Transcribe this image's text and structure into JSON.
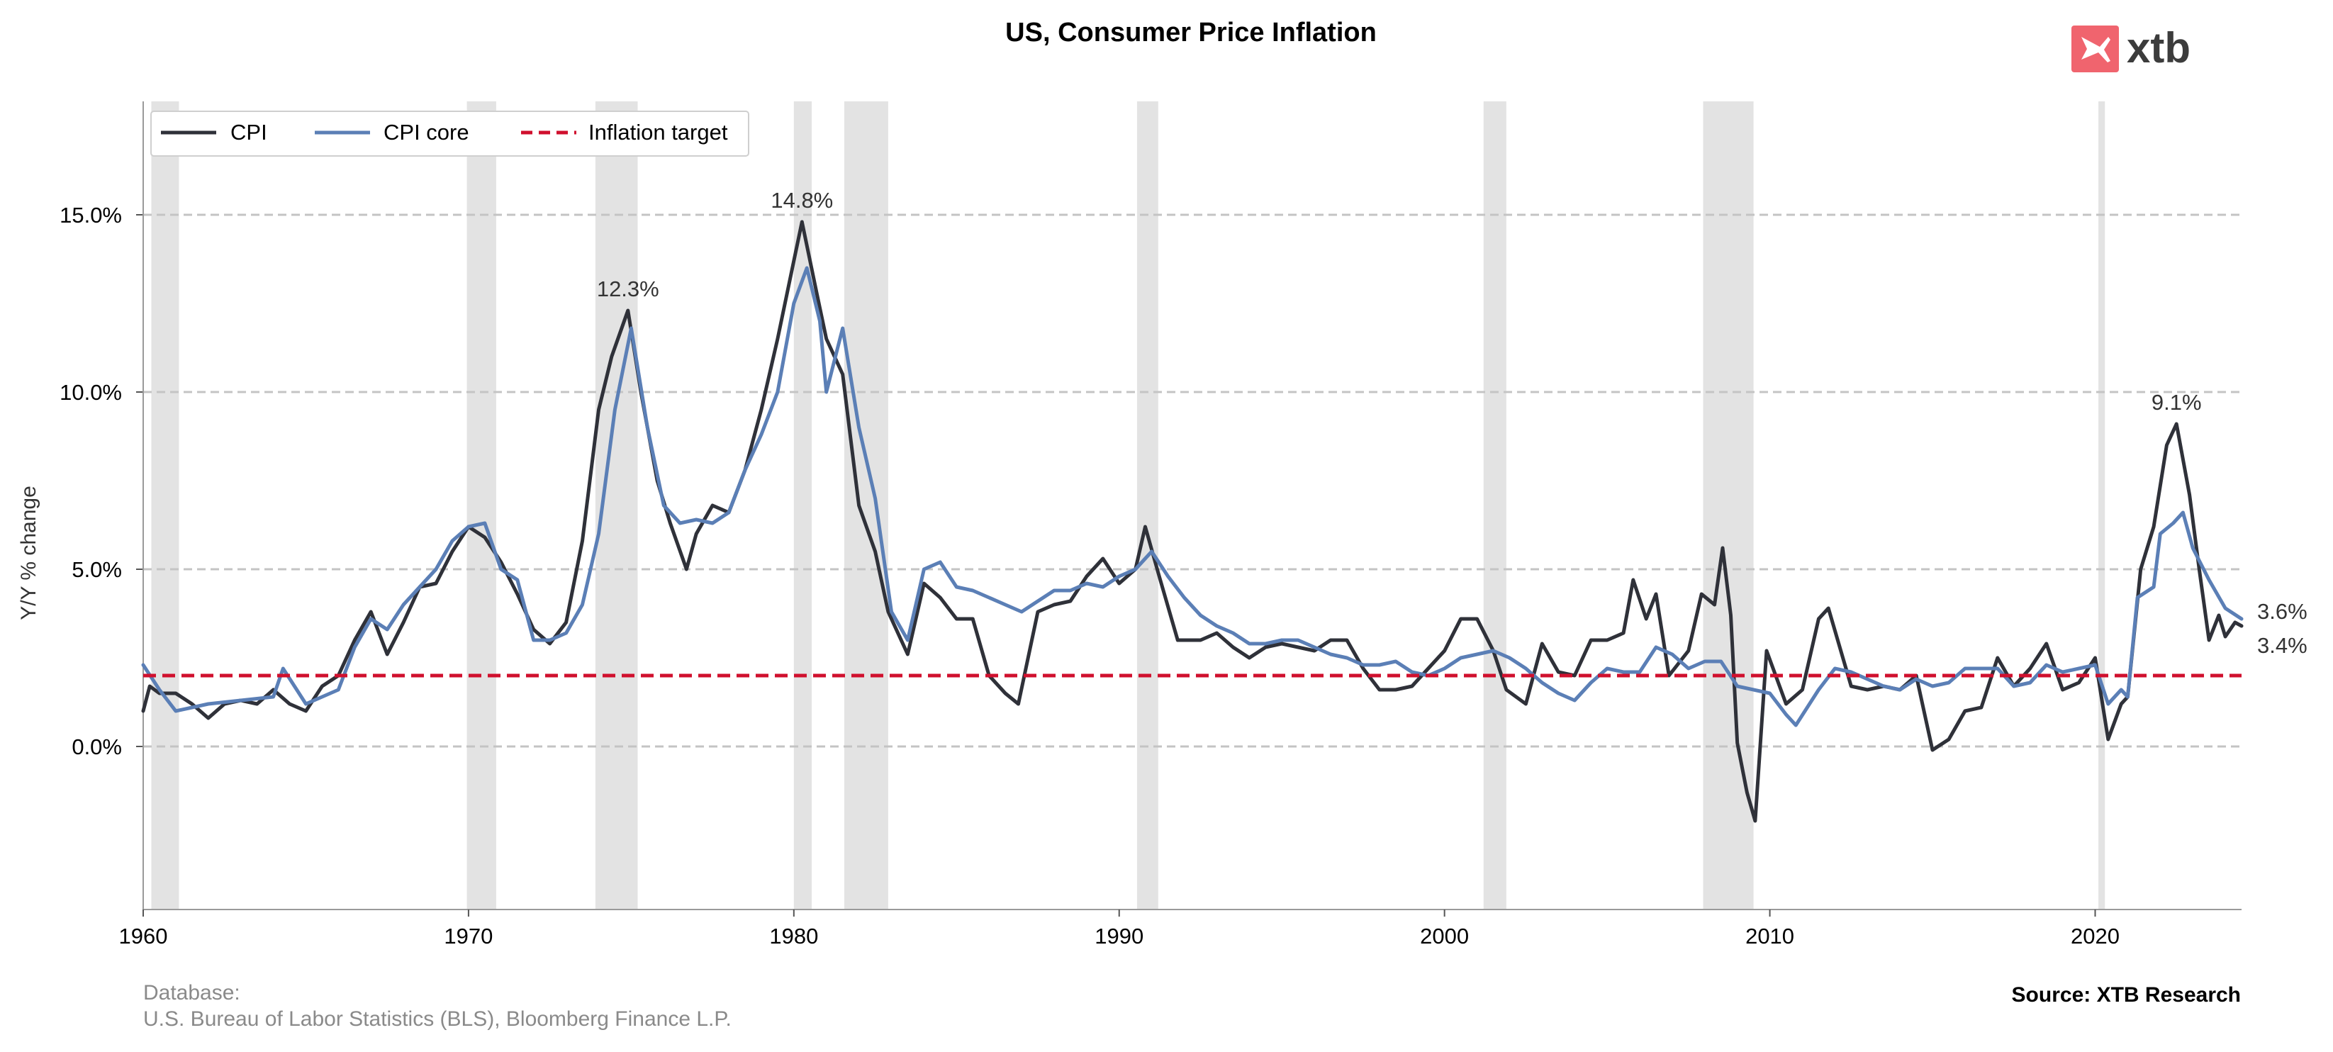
{
  "chart_data": {
    "type": "line",
    "title": "US, Consumer Price Inflation",
    "xlabel": "",
    "ylabel": "Y/Y % change",
    "xlim": [
      1960,
      2024.5
    ],
    "ylim": [
      -4.6,
      18.2
    ],
    "x_ticks": [
      1960,
      1970,
      1980,
      1990,
      2000,
      2010,
      2020
    ],
    "y_ticks": [
      0,
      5,
      10,
      15
    ],
    "y_tick_labels": [
      "0.0%",
      "5.0%",
      "10.0%",
      "15.0%"
    ],
    "grid": "horizontal dashed",
    "legend_position": "top-left",
    "series": [
      {
        "name": "CPI",
        "color": "#2f3139",
        "points": [
          [
            1960.0,
            1.0
          ],
          [
            1960.2,
            1.7
          ],
          [
            1960.5,
            1.5
          ],
          [
            1961.0,
            1.5
          ],
          [
            1961.5,
            1.2
          ],
          [
            1962.0,
            0.8
          ],
          [
            1962.5,
            1.2
          ],
          [
            1963.0,
            1.3
          ],
          [
            1963.5,
            1.2
          ],
          [
            1964.0,
            1.6
          ],
          [
            1964.5,
            1.2
          ],
          [
            1965.0,
            1.0
          ],
          [
            1965.5,
            1.7
          ],
          [
            1966.0,
            2.0
          ],
          [
            1966.5,
            3.0
          ],
          [
            1967.0,
            3.8
          ],
          [
            1967.5,
            2.6
          ],
          [
            1968.0,
            3.5
          ],
          [
            1968.5,
            4.5
          ],
          [
            1969.0,
            4.6
          ],
          [
            1969.5,
            5.5
          ],
          [
            1970.0,
            6.2
          ],
          [
            1970.5,
            5.9
          ],
          [
            1971.0,
            5.2
          ],
          [
            1971.5,
            4.3
          ],
          [
            1972.0,
            3.3
          ],
          [
            1972.5,
            2.9
          ],
          [
            1973.0,
            3.5
          ],
          [
            1973.5,
            5.8
          ],
          [
            1974.0,
            9.5
          ],
          [
            1974.4,
            11.0
          ],
          [
            1974.9,
            12.3
          ],
          [
            1975.3,
            10.0
          ],
          [
            1975.8,
            7.5
          ],
          [
            1976.2,
            6.3
          ],
          [
            1976.7,
            5.0
          ],
          [
            1977.0,
            6.0
          ],
          [
            1977.5,
            6.8
          ],
          [
            1978.0,
            6.6
          ],
          [
            1978.5,
            7.8
          ],
          [
            1979.0,
            9.5
          ],
          [
            1979.5,
            11.5
          ],
          [
            1980.0,
            13.7
          ],
          [
            1980.25,
            14.8
          ],
          [
            1980.7,
            12.8
          ],
          [
            1981.0,
            11.5
          ],
          [
            1981.5,
            10.5
          ],
          [
            1982.0,
            6.8
          ],
          [
            1982.5,
            5.5
          ],
          [
            1982.9,
            3.8
          ],
          [
            1983.5,
            2.6
          ],
          [
            1984.0,
            4.6
          ],
          [
            1984.5,
            4.2
          ],
          [
            1985.0,
            3.6
          ],
          [
            1985.5,
            3.6
          ],
          [
            1986.0,
            2.0
          ],
          [
            1986.5,
            1.5
          ],
          [
            1986.9,
            1.2
          ],
          [
            1987.5,
            3.8
          ],
          [
            1988.0,
            4.0
          ],
          [
            1988.5,
            4.1
          ],
          [
            1989.0,
            4.8
          ],
          [
            1989.5,
            5.3
          ],
          [
            1990.0,
            4.6
          ],
          [
            1990.5,
            5.0
          ],
          [
            1990.8,
            6.2
          ],
          [
            1991.2,
            4.9
          ],
          [
            1991.8,
            3.0
          ],
          [
            1992.5,
            3.0
          ],
          [
            1993.0,
            3.2
          ],
          [
            1993.5,
            2.8
          ],
          [
            1994.0,
            2.5
          ],
          [
            1994.5,
            2.8
          ],
          [
            1995.0,
            2.9
          ],
          [
            1995.5,
            2.8
          ],
          [
            1996.0,
            2.7
          ],
          [
            1996.5,
            3.0
          ],
          [
            1997.0,
            3.0
          ],
          [
            1997.5,
            2.2
          ],
          [
            1998.0,
            1.6
          ],
          [
            1998.5,
            1.6
          ],
          [
            1999.0,
            1.7
          ],
          [
            1999.5,
            2.2
          ],
          [
            2000.0,
            2.7
          ],
          [
            2000.5,
            3.6
          ],
          [
            2001.0,
            3.6
          ],
          [
            2001.5,
            2.7
          ],
          [
            2001.9,
            1.6
          ],
          [
            2002.5,
            1.2
          ],
          [
            2003.0,
            2.9
          ],
          [
            2003.5,
            2.1
          ],
          [
            2004.0,
            2.0
          ],
          [
            2004.5,
            3.0
          ],
          [
            2005.0,
            3.0
          ],
          [
            2005.5,
            3.2
          ],
          [
            2005.8,
            4.7
          ],
          [
            2006.2,
            3.6
          ],
          [
            2006.5,
            4.3
          ],
          [
            2006.9,
            2.0
          ],
          [
            2007.5,
            2.7
          ],
          [
            2007.9,
            4.3
          ],
          [
            2008.3,
            4.0
          ],
          [
            2008.55,
            5.6
          ],
          [
            2008.8,
            3.7
          ],
          [
            2009.0,
            0.1
          ],
          [
            2009.3,
            -1.3
          ],
          [
            2009.55,
            -2.1
          ],
          [
            2009.9,
            2.7
          ],
          [
            2010.5,
            1.2
          ],
          [
            2011.0,
            1.6
          ],
          [
            2011.5,
            3.6
          ],
          [
            2011.8,
            3.9
          ],
          [
            2012.5,
            1.7
          ],
          [
            2013.0,
            1.6
          ],
          [
            2013.5,
            1.7
          ],
          [
            2014.0,
            1.6
          ],
          [
            2014.5,
            2.0
          ],
          [
            2015.0,
            -0.1
          ],
          [
            2015.5,
            0.2
          ],
          [
            2016.0,
            1.0
          ],
          [
            2016.5,
            1.1
          ],
          [
            2017.0,
            2.5
          ],
          [
            2017.5,
            1.7
          ],
          [
            2018.0,
            2.2
          ],
          [
            2018.5,
            2.9
          ],
          [
            2019.0,
            1.6
          ],
          [
            2019.5,
            1.8
          ],
          [
            2020.0,
            2.5
          ],
          [
            2020.4,
            0.2
          ],
          [
            2020.8,
            1.2
          ],
          [
            2021.0,
            1.4
          ],
          [
            2021.4,
            5.0
          ],
          [
            2021.8,
            6.2
          ],
          [
            2022.2,
            8.5
          ],
          [
            2022.5,
            9.1
          ],
          [
            2022.9,
            7.1
          ],
          [
            2023.2,
            5.0
          ],
          [
            2023.5,
            3.0
          ],
          [
            2023.8,
            3.7
          ],
          [
            2024.0,
            3.1
          ],
          [
            2024.3,
            3.5
          ],
          [
            2024.5,
            3.4
          ]
        ]
      },
      {
        "name": "CPI core",
        "color": "#5b7fb6",
        "points": [
          [
            1960.0,
            2.3
          ],
          [
            1960.5,
            1.6
          ],
          [
            1961.0,
            1.0
          ],
          [
            1962.0,
            1.2
          ],
          [
            1963.0,
            1.3
          ],
          [
            1964.0,
            1.4
          ],
          [
            1964.3,
            2.2
          ],
          [
            1965.0,
            1.2
          ],
          [
            1966.0,
            1.6
          ],
          [
            1966.5,
            2.8
          ],
          [
            1967.0,
            3.6
          ],
          [
            1967.5,
            3.3
          ],
          [
            1968.0,
            4.0
          ],
          [
            1969.0,
            5.0
          ],
          [
            1969.5,
            5.8
          ],
          [
            1970.0,
            6.2
          ],
          [
            1970.5,
            6.3
          ],
          [
            1971.0,
            5.0
          ],
          [
            1971.5,
            4.7
          ],
          [
            1972.0,
            3.0
          ],
          [
            1972.5,
            3.0
          ],
          [
            1973.0,
            3.2
          ],
          [
            1973.5,
            4.0
          ],
          [
            1974.0,
            6.0
          ],
          [
            1974.5,
            9.5
          ],
          [
            1975.0,
            11.8
          ],
          [
            1975.5,
            9.0
          ],
          [
            1976.0,
            6.8
          ],
          [
            1976.5,
            6.3
          ],
          [
            1977.0,
            6.4
          ],
          [
            1977.5,
            6.3
          ],
          [
            1978.0,
            6.6
          ],
          [
            1978.5,
            7.8
          ],
          [
            1979.0,
            8.8
          ],
          [
            1979.5,
            10.0
          ],
          [
            1980.0,
            12.5
          ],
          [
            1980.4,
            13.5
          ],
          [
            1980.8,
            12.0
          ],
          [
            1981.0,
            10.0
          ],
          [
            1981.5,
            11.8
          ],
          [
            1982.0,
            9.0
          ],
          [
            1982.5,
            7.0
          ],
          [
            1983.0,
            3.8
          ],
          [
            1983.5,
            3.0
          ],
          [
            1984.0,
            5.0
          ],
          [
            1984.5,
            5.2
          ],
          [
            1985.0,
            4.5
          ],
          [
            1985.5,
            4.4
          ],
          [
            1986.0,
            4.2
          ],
          [
            1986.5,
            4.0
          ],
          [
            1987.0,
            3.8
          ],
          [
            1987.5,
            4.1
          ],
          [
            1988.0,
            4.4
          ],
          [
            1988.5,
            4.4
          ],
          [
            1989.0,
            4.6
          ],
          [
            1989.5,
            4.5
          ],
          [
            1990.0,
            4.8
          ],
          [
            1990.5,
            5.0
          ],
          [
            1991.0,
            5.5
          ],
          [
            1991.5,
            4.8
          ],
          [
            1992.0,
            4.2
          ],
          [
            1992.5,
            3.7
          ],
          [
            1993.0,
            3.4
          ],
          [
            1993.5,
            3.2
          ],
          [
            1994.0,
            2.9
          ],
          [
            1994.5,
            2.9
          ],
          [
            1995.0,
            3.0
          ],
          [
            1995.5,
            3.0
          ],
          [
            1996.0,
            2.8
          ],
          [
            1996.5,
            2.6
          ],
          [
            1997.0,
            2.5
          ],
          [
            1997.5,
            2.3
          ],
          [
            1998.0,
            2.3
          ],
          [
            1998.5,
            2.4
          ],
          [
            1999.0,
            2.1
          ],
          [
            1999.5,
            2.0
          ],
          [
            2000.0,
            2.2
          ],
          [
            2000.5,
            2.5
          ],
          [
            2001.0,
            2.6
          ],
          [
            2001.5,
            2.7
          ],
          [
            2002.0,
            2.5
          ],
          [
            2002.5,
            2.2
          ],
          [
            2003.0,
            1.8
          ],
          [
            2003.5,
            1.5
          ],
          [
            2004.0,
            1.3
          ],
          [
            2004.5,
            1.8
          ],
          [
            2005.0,
            2.2
          ],
          [
            2005.5,
            2.1
          ],
          [
            2006.0,
            2.1
          ],
          [
            2006.5,
            2.8
          ],
          [
            2007.0,
            2.6
          ],
          [
            2007.5,
            2.2
          ],
          [
            2008.0,
            2.4
          ],
          [
            2008.5,
            2.4
          ],
          [
            2009.0,
            1.7
          ],
          [
            2009.5,
            1.6
          ],
          [
            2010.0,
            1.5
          ],
          [
            2010.5,
            0.9
          ],
          [
            2010.8,
            0.6
          ],
          [
            2011.5,
            1.6
          ],
          [
            2012.0,
            2.2
          ],
          [
            2012.5,
            2.1
          ],
          [
            2013.0,
            1.9
          ],
          [
            2013.5,
            1.7
          ],
          [
            2014.0,
            1.6
          ],
          [
            2014.5,
            1.9
          ],
          [
            2015.0,
            1.7
          ],
          [
            2015.5,
            1.8
          ],
          [
            2016.0,
            2.2
          ],
          [
            2016.5,
            2.2
          ],
          [
            2017.0,
            2.2
          ],
          [
            2017.5,
            1.7
          ],
          [
            2018.0,
            1.8
          ],
          [
            2018.5,
            2.3
          ],
          [
            2019.0,
            2.1
          ],
          [
            2019.5,
            2.2
          ],
          [
            2020.0,
            2.3
          ],
          [
            2020.4,
            1.2
          ],
          [
            2020.8,
            1.6
          ],
          [
            2021.0,
            1.4
          ],
          [
            2021.3,
            4.2
          ],
          [
            2021.8,
            4.5
          ],
          [
            2022.0,
            6.0
          ],
          [
            2022.4,
            6.3
          ],
          [
            2022.7,
            6.6
          ],
          [
            2023.0,
            5.6
          ],
          [
            2023.5,
            4.7
          ],
          [
            2024.0,
            3.9
          ],
          [
            2024.5,
            3.6
          ]
        ]
      },
      {
        "name": "Inflation target",
        "color": "#d0102e",
        "style": "dashed",
        "points": [
          [
            1960.0,
            2.0
          ],
          [
            2024.5,
            2.0
          ]
        ]
      }
    ],
    "recessions": [
      [
        1960.25,
        1961.1
      ],
      [
        1969.95,
        1970.85
      ],
      [
        1973.9,
        1975.2
      ],
      [
        1980.0,
        1980.55
      ],
      [
        1981.55,
        1982.9
      ],
      [
        1990.55,
        1991.2
      ],
      [
        2001.2,
        2001.9
      ],
      [
        2007.95,
        2009.5
      ],
      [
        2020.1,
        2020.3
      ]
    ],
    "annotations": [
      {
        "text": "12.3%",
        "x": 1974.9,
        "y": 12.3
      },
      {
        "text": "14.8%",
        "x": 1980.25,
        "y": 14.8
      },
      {
        "text": "9.1%",
        "x": 2022.5,
        "y": 9.1
      }
    ],
    "end_labels": [
      {
        "text": "3.6%",
        "series": "CPI core",
        "y": 3.6
      },
      {
        "text": "3.4%",
        "series": "CPI",
        "y": 3.4
      }
    ]
  },
  "header": {
    "title": "US, Consumer Price Inflation",
    "brand": "xtb",
    "brand_color": "#f0646e"
  },
  "legend": {
    "items": [
      "CPI",
      "CPI core",
      "Inflation target"
    ]
  },
  "footer": {
    "database_label": "Database:",
    "database_sources": "U.S. Bureau of Labor Statistics (BLS), Bloomberg Finance L.P.",
    "source": "Source: XTB Research"
  }
}
